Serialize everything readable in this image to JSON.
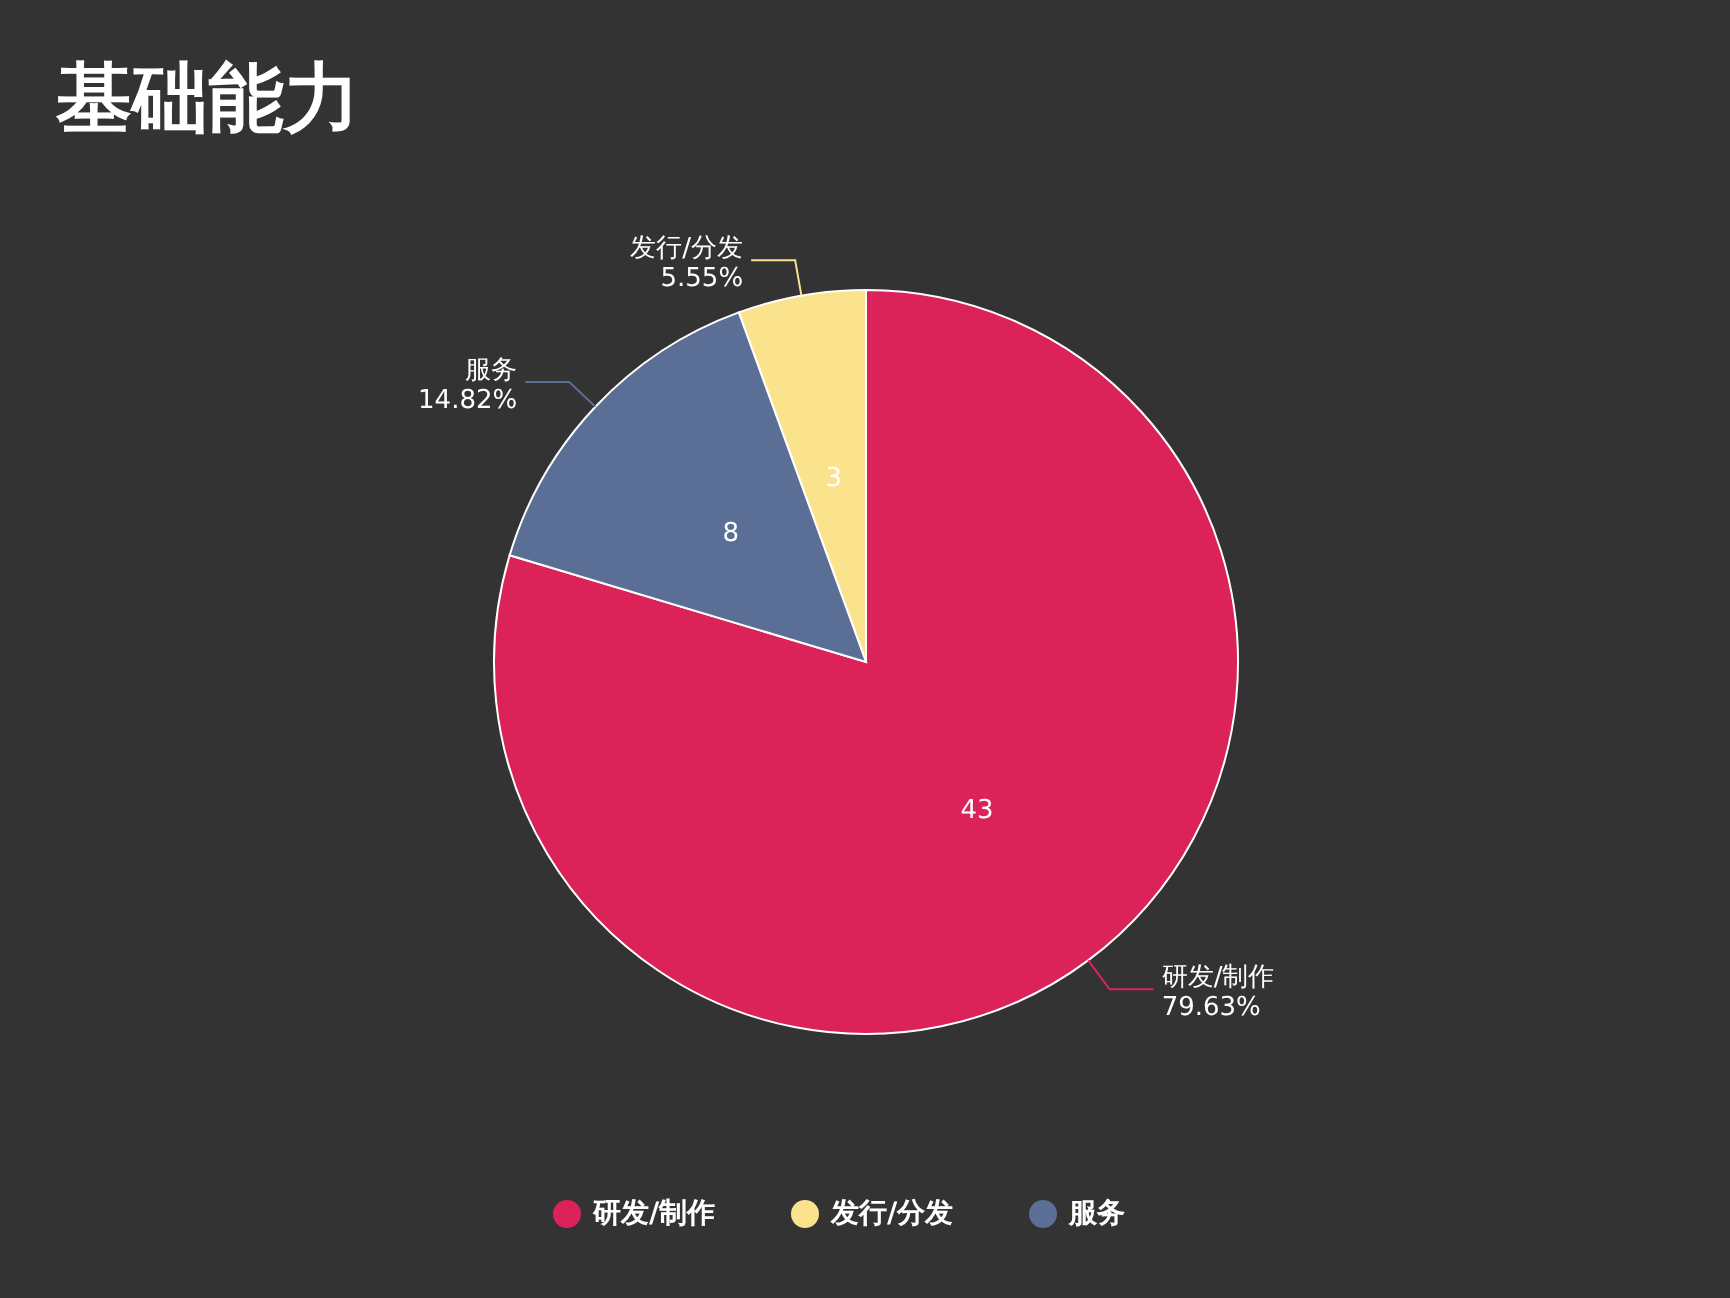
{
  "chart_data": {
    "type": "pie",
    "title": "基础能力",
    "categories": [
      "研发/制作",
      "发行/分发",
      "服务"
    ],
    "values": [
      43,
      3,
      8
    ],
    "colors": [
      "#dc2359",
      "#fbe38e",
      "#5a6e96"
    ],
    "value_labels": [
      "43",
      "3",
      "8"
    ],
    "annotations": [
      "79.63%",
      "5.55%",
      "14.82%"
    ],
    "legend": "bottom"
  }
}
